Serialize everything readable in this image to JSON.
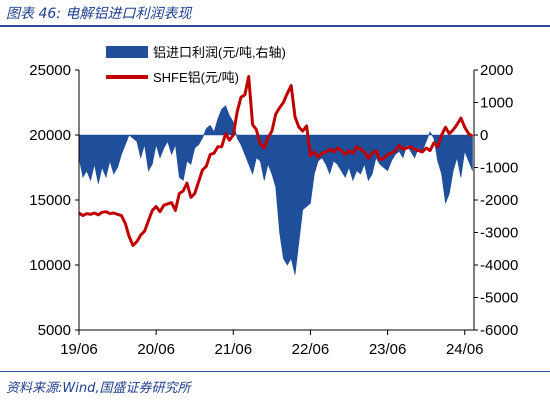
{
  "header": {
    "title": "图表 46:  电解铝进口利润表现"
  },
  "footer": {
    "source": "资料来源:Wind,国盛证券研究所"
  },
  "colors": {
    "profit": "#1f4e9b",
    "price": "#c00000",
    "axis": "#000000",
    "accent": "#2b4aa0"
  },
  "chart_data": {
    "type": "area+line",
    "title": "",
    "x_tick_labels": [
      "19/06",
      "20/06",
      "21/06",
      "22/06",
      "23/06",
      "24/06"
    ],
    "x_range": [
      "2019-06",
      "2024-08"
    ],
    "legend_position": "top-center",
    "left_axis": {
      "min": 5000,
      "max": 25000,
      "ticks": [
        5000,
        10000,
        15000,
        20000,
        25000
      ]
    },
    "right_axis": {
      "min": -6000,
      "max": 2000,
      "ticks": [
        2000,
        1000,
        0,
        -1000,
        -2000,
        -3000,
        -4000,
        -5000,
        -6000
      ]
    },
    "series": [
      {
        "name": "铝进口利润(元/吨,右轴)",
        "kind": "area",
        "axis": "right",
        "color": "#1f4e9b",
        "x": [
          2019.5,
          2019.55,
          2019.6,
          2019.65,
          2019.7,
          2019.75,
          2019.8,
          2019.85,
          2019.9,
          2019.95,
          2020.0,
          2020.05,
          2020.1,
          2020.15,
          2020.2,
          2020.25,
          2020.3,
          2020.35,
          2020.4,
          2020.45,
          2020.5,
          2020.55,
          2020.6,
          2020.65,
          2020.7,
          2020.75,
          2020.8,
          2020.85,
          2020.9,
          2020.95,
          2021.0,
          2021.05,
          2021.1,
          2021.15,
          2021.2,
          2021.25,
          2021.3,
          2021.35,
          2021.4,
          2021.45,
          2021.5,
          2021.55,
          2021.6,
          2021.65,
          2021.7,
          2021.75,
          2021.8,
          2021.85,
          2021.9,
          2021.95,
          2022.0,
          2022.05,
          2022.1,
          2022.15,
          2022.2,
          2022.25,
          2022.3,
          2022.35,
          2022.4,
          2022.45,
          2022.5,
          2022.55,
          2022.6,
          2022.65,
          2022.7,
          2022.75,
          2022.8,
          2022.85,
          2022.9,
          2022.95,
          2023.0,
          2023.05,
          2023.1,
          2023.15,
          2023.2,
          2023.25,
          2023.3,
          2023.35,
          2023.4,
          2023.45,
          2023.5,
          2023.55,
          2023.6,
          2023.65,
          2023.7,
          2023.75,
          2023.8,
          2023.85,
          2023.9,
          2023.95,
          2024.0,
          2024.05,
          2024.1,
          2024.15,
          2024.2,
          2024.25,
          2024.3,
          2024.35,
          2024.4,
          2024.45,
          2024.5,
          2024.55,
          2024.6
        ],
        "values": [
          -700,
          -1300,
          -1100,
          -1400,
          -900,
          -1500,
          -1000,
          -1300,
          -800,
          -1200,
          -1000,
          -600,
          -300,
          0,
          -100,
          -200,
          -700,
          -300,
          -1100,
          -900,
          -300,
          -700,
          -400,
          -200,
          -600,
          -300,
          -1300,
          -1400,
          -800,
          -900,
          -400,
          -300,
          -100,
          200,
          300,
          100,
          500,
          800,
          900,
          600,
          400,
          -100,
          -300,
          -600,
          -900,
          -1200,
          -700,
          -800,
          -1400,
          -900,
          -1200,
          -1600,
          -3000,
          -3800,
          -4000,
          -3800,
          -4300,
          -3300,
          -2300,
          -2200,
          -2100,
          -1200,
          -800,
          -700,
          -900,
          -1200,
          -800,
          -900,
          -1100,
          -1300,
          -1000,
          -1400,
          -1100,
          -1200,
          -900,
          -1400,
          -1200,
          -700,
          -900,
          -1000,
          -1100,
          -800,
          -600,
          -500,
          -700,
          -300,
          -500,
          -700,
          -400,
          -500,
          -200,
          100,
          -100,
          -800,
          -1200,
          -2100,
          -1800,
          -1100,
          -700,
          -1300,
          -500,
          -800,
          -1100
        ]
      },
      {
        "name": "SHFE铝(元/吨)",
        "kind": "line",
        "axis": "left",
        "color": "#c00000",
        "x": [
          2019.5,
          2019.55,
          2019.6,
          2019.65,
          2019.7,
          2019.75,
          2019.8,
          2019.85,
          2019.9,
          2019.95,
          2020.0,
          2020.05,
          2020.1,
          2020.15,
          2020.2,
          2020.25,
          2020.3,
          2020.35,
          2020.4,
          2020.45,
          2020.5,
          2020.55,
          2020.6,
          2020.65,
          2020.7,
          2020.75,
          2020.8,
          2020.85,
          2020.9,
          2020.95,
          2021.0,
          2021.05,
          2021.1,
          2021.15,
          2021.2,
          2021.25,
          2021.3,
          2021.35,
          2021.4,
          2021.45,
          2021.5,
          2021.55,
          2021.6,
          2021.65,
          2021.7,
          2021.75,
          2021.8,
          2021.85,
          2021.9,
          2021.95,
          2022.0,
          2022.05,
          2022.1,
          2022.15,
          2022.2,
          2022.25,
          2022.3,
          2022.35,
          2022.4,
          2022.45,
          2022.5,
          2022.55,
          2022.6,
          2022.65,
          2022.7,
          2022.75,
          2022.8,
          2022.85,
          2022.9,
          2022.95,
          2023.0,
          2023.05,
          2023.1,
          2023.15,
          2023.2,
          2023.25,
          2023.3,
          2023.35,
          2023.4,
          2023.45,
          2023.5,
          2023.55,
          2023.6,
          2023.65,
          2023.7,
          2023.75,
          2023.8,
          2023.85,
          2023.9,
          2023.95,
          2024.0,
          2024.05,
          2024.1,
          2024.15,
          2024.2,
          2024.25,
          2024.3,
          2024.35,
          2024.4,
          2024.45,
          2024.5,
          2024.55,
          2024.6
        ],
        "values": [
          14000,
          13800,
          13950,
          13900,
          14000,
          13850,
          14050,
          14100,
          13950,
          14000,
          13900,
          13800,
          13200,
          12200,
          11500,
          11800,
          12300,
          12600,
          13400,
          14200,
          14500,
          14100,
          14600,
          14700,
          14800,
          14200,
          15500,
          15700,
          16300,
          15200,
          15500,
          16400,
          17300,
          17600,
          18500,
          18600,
          19100,
          19100,
          20100,
          19600,
          20000,
          21800,
          22900,
          23100,
          24500,
          20800,
          20400,
          19300,
          19000,
          19800,
          20300,
          21600,
          22100,
          22500,
          23200,
          23800,
          21400,
          20600,
          20300,
          20700,
          18400,
          18700,
          18300,
          18600,
          18700,
          18900,
          18700,
          19000,
          18800,
          18500,
          18800,
          18600,
          19100,
          18900,
          18700,
          18200,
          18600,
          18800,
          18100,
          18200,
          18500,
          18600,
          18800,
          19200,
          18900,
          19000,
          19100,
          18900,
          18800,
          18700,
          19000,
          18800,
          19400,
          19100,
          20000,
          20600,
          20100,
          20400,
          20800,
          21300,
          20600,
          20100,
          19900
        ]
      }
    ]
  }
}
